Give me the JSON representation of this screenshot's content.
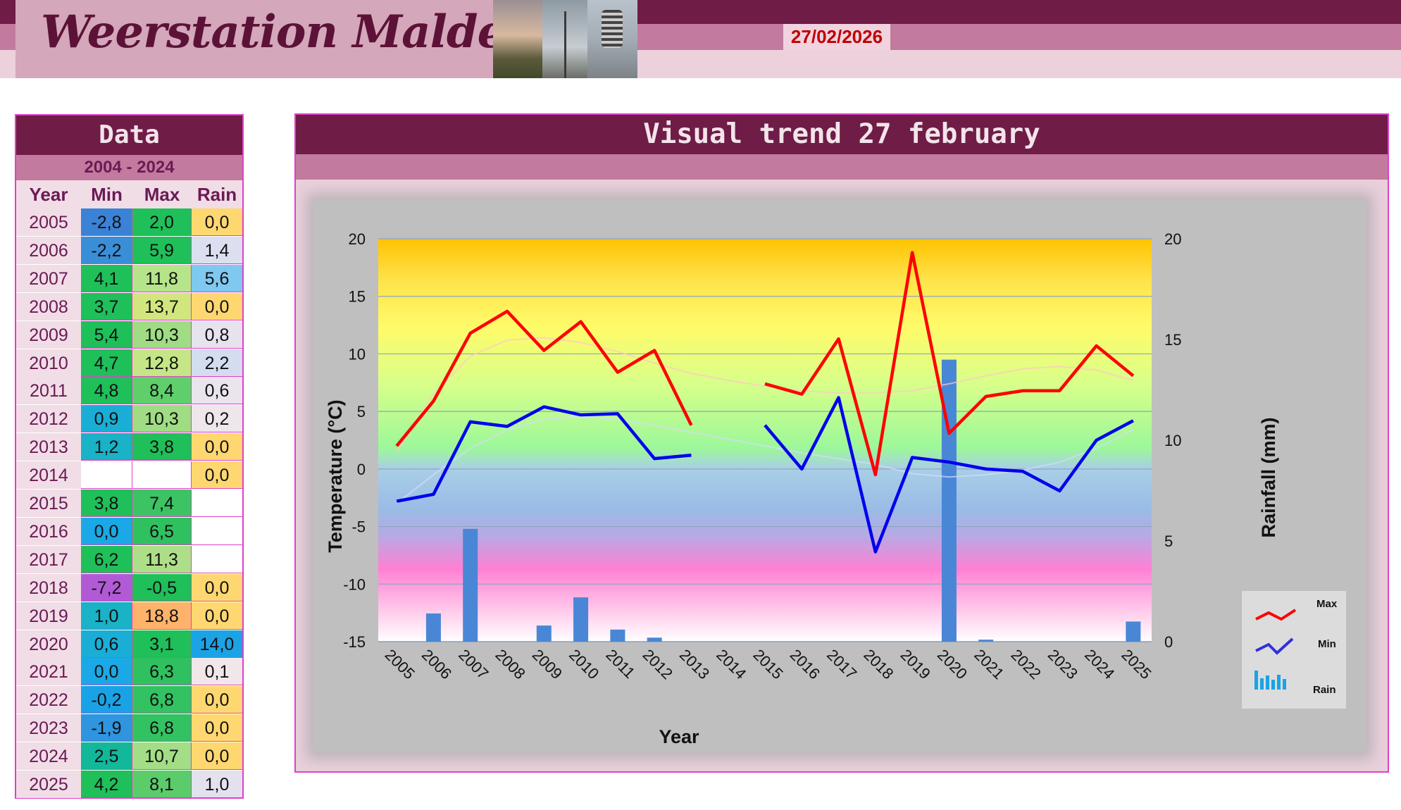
{
  "header": {
    "title": "Weerstation Malderen",
    "date": "27/02/2026"
  },
  "table": {
    "title": "Data",
    "period": "2004 - 2024",
    "col_year": "Year",
    "col_min": "Min",
    "col_max": "Max",
    "col_rain": "Rain",
    "rows": [
      {
        "year": "2005",
        "min": "-2,8",
        "max": "2,0",
        "rain": "0,0",
        "c_min": "#3a82d6",
        "c_max": "#1fbf5a",
        "c_rain": "#ffd770"
      },
      {
        "year": "2006",
        "min": "-2,2",
        "max": "5,9",
        "rain": "1,4",
        "c_min": "#3a8ed8",
        "c_max": "#1fbf5a",
        "c_rain": "#dcdff0"
      },
      {
        "year": "2007",
        "min": "4,1",
        "max": "11,8",
        "rain": "5,6",
        "c_min": "#1fbf5a",
        "c_max": "#b6e48a",
        "c_rain": "#7fc8ef"
      },
      {
        "year": "2008",
        "min": "3,7",
        "max": "13,7",
        "rain": "0,0",
        "c_min": "#1fbf5a",
        "c_max": "#d2e67e",
        "c_rain": "#ffd770"
      },
      {
        "year": "2009",
        "min": "5,4",
        "max": "10,3",
        "rain": "0,8",
        "c_min": "#1fbf5a",
        "c_max": "#9fdc84",
        "c_rain": "#e6e3ee"
      },
      {
        "year": "2010",
        "min": "4,7",
        "max": "12,8",
        "rain": "2,2",
        "c_min": "#1fbf5a",
        "c_max": "#c4e686",
        "c_rain": "#d4dcf0"
      },
      {
        "year": "2011",
        "min": "4,8",
        "max": "8,4",
        "rain": "0,6",
        "c_min": "#1fbf5a",
        "c_max": "#5fcf6c",
        "c_rain": "#eae4ee"
      },
      {
        "year": "2012",
        "min": "0,9",
        "max": "10,3",
        "rain": "0,2",
        "c_min": "#1aaed6",
        "c_max": "#9fdc84",
        "c_rain": "#efe6ec"
      },
      {
        "year": "2013",
        "min": "1,2",
        "max": "3,8",
        "rain": "0,0",
        "c_min": "#19b2c6",
        "c_max": "#1fbf5a",
        "c_rain": "#ffd770"
      },
      {
        "year": "2014",
        "min": "",
        "max": "",
        "rain": "0,0",
        "c_min": "#ffffff",
        "c_max": "#ffffff",
        "c_rain": "#ffd770"
      },
      {
        "year": "2015",
        "min": "3,8",
        "max": "7,4",
        "rain": "",
        "c_min": "#1fbf5a",
        "c_max": "#3cc464",
        "c_rain": "#ffffff"
      },
      {
        "year": "2016",
        "min": "0,0",
        "max": "6,5",
        "rain": "",
        "c_min": "#1aa8e6",
        "c_max": "#2fc160",
        "c_rain": "#ffffff"
      },
      {
        "year": "2017",
        "min": "6,2",
        "max": "11,3",
        "rain": "",
        "c_min": "#1fbf5a",
        "c_max": "#addf88",
        "c_rain": "#ffffff"
      },
      {
        "year": "2018",
        "min": "-7,2",
        "max": "-0,5",
        "rain": "0,0",
        "c_min": "#b25ad6",
        "c_max": "#1fbf5a",
        "c_rain": "#ffd770"
      },
      {
        "year": "2019",
        "min": "1,0",
        "max": "18,8",
        "rain": "0,0",
        "c_min": "#19b2c6",
        "c_max": "#ffb36a",
        "c_rain": "#ffd770"
      },
      {
        "year": "2020",
        "min": "0,6",
        "max": "3,1",
        "rain": "14,0",
        "c_min": "#1aaed6",
        "c_max": "#1fbf5a",
        "c_rain": "#1ba3e6"
      },
      {
        "year": "2021",
        "min": "0,0",
        "max": "6,3",
        "rain": "0,1",
        "c_min": "#1aa8e6",
        "c_max": "#2fc160",
        "c_rain": "#f1e6ea"
      },
      {
        "year": "2022",
        "min": "-0,2",
        "max": "6,8",
        "rain": "0,0",
        "c_min": "#1aa2e6",
        "c_max": "#33c262",
        "c_rain": "#ffd770"
      },
      {
        "year": "2023",
        "min": "-1,9",
        "max": "6,8",
        "rain": "0,0",
        "c_min": "#2e95de",
        "c_max": "#33c262",
        "c_rain": "#ffd770"
      },
      {
        "year": "2024",
        "min": "2,5",
        "max": "10,7",
        "rain": "0,0",
        "c_min": "#13b79a",
        "c_max": "#a3dd86",
        "c_rain": "#ffd770"
      },
      {
        "year": "2025",
        "min": "4,2",
        "max": "8,1",
        "rain": "1,0",
        "c_min": "#1fbf5a",
        "c_max": "#5acd6a",
        "c_rain": "#e3e1ee"
      }
    ]
  },
  "chart_title": "Visual trend 27 february",
  "chart_data": {
    "type": "line",
    "title": "Visual trend 27 february",
    "xlabel": "Year",
    "ylabel": "Temperature (°C)",
    "y2label": "Rainfall (mm)",
    "ylim": [
      -15,
      20
    ],
    "y2lim": [
      0,
      20
    ],
    "yticks": [
      20,
      15,
      10,
      5,
      0,
      -5,
      -10,
      -15
    ],
    "y2ticks": [
      20,
      15,
      10,
      5,
      0
    ],
    "categories": [
      "2005",
      "2006",
      "2007",
      "2008",
      "2009",
      "2010",
      "2011",
      "2012",
      "2013",
      "2014",
      "2015",
      "2016",
      "2017",
      "2018",
      "2019",
      "2020",
      "2021",
      "2022",
      "2023",
      "2024",
      "2025"
    ],
    "series": [
      {
        "name": "Max",
        "type": "line",
        "axis": "left",
        "color": "#ff0000",
        "values": [
          2.0,
          5.9,
          11.8,
          13.7,
          10.3,
          12.8,
          8.4,
          10.3,
          3.8,
          null,
          7.4,
          6.5,
          11.3,
          -0.5,
          18.8,
          3.1,
          6.3,
          6.8,
          6.8,
          10.7,
          8.1
        ]
      },
      {
        "name": "Min",
        "type": "line",
        "axis": "left",
        "color": "#0000ee",
        "values": [
          -2.8,
          -2.2,
          4.1,
          3.7,
          5.4,
          4.7,
          4.8,
          0.9,
          1.2,
          null,
          3.8,
          0.0,
          6.2,
          -7.2,
          1.0,
          0.6,
          0.0,
          -0.2,
          -1.9,
          2.5,
          4.2
        ]
      },
      {
        "name": "Rain",
        "type": "bar",
        "axis": "right",
        "color": "#4a86d6",
        "values": [
          0.0,
          1.4,
          5.6,
          0.0,
          0.8,
          2.2,
          0.6,
          0.2,
          0.0,
          0.0,
          null,
          null,
          null,
          0.0,
          0.0,
          14.0,
          0.1,
          0.0,
          0.0,
          0.0,
          1.0
        ]
      }
    ],
    "trend_max": [
      1.5,
      6.5,
      9.8,
      11.2,
      11.4,
      11.0,
      10.2,
      9.2,
      8.3,
      7.7,
      7.2,
      6.8,
      6.6,
      6.6,
      6.8,
      7.4,
      8.1,
      8.7,
      8.9,
      8.6,
      7.7
    ],
    "trend_min": [
      -3.0,
      -0.5,
      1.8,
      3.4,
      4.3,
      4.6,
      4.3,
      3.8,
      3.2,
      2.6,
      2.0,
      1.4,
      0.9,
      0.4,
      -0.4,
      -0.7,
      -0.5,
      -0.1,
      0.6,
      1.8,
      3.4
    ],
    "legend": {
      "placement": "bottom-right",
      "items": [
        "Max",
        "Min",
        "Rain"
      ]
    }
  }
}
